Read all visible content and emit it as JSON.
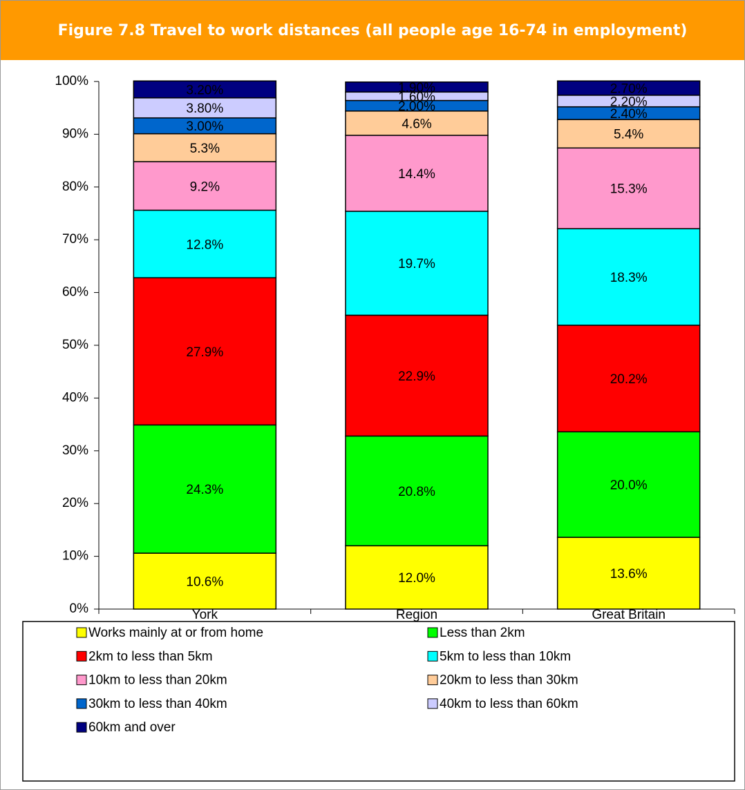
{
  "chart_data": {
    "type": "stacked_bar",
    "title": "Figure 7.8 Travel to work distances (all people age 16-74 in employment)",
    "categories": [
      "York",
      "Region",
      "Great Britain"
    ],
    "ylim": [
      0,
      100
    ],
    "yticks": [
      {
        "value": 0,
        "label": "0%"
      },
      {
        "value": 10,
        "label": "10%"
      },
      {
        "value": 20,
        "label": "20%"
      },
      {
        "value": 30,
        "label": "30%"
      },
      {
        "value": 40,
        "label": "40%"
      },
      {
        "value": 50,
        "label": "50%"
      },
      {
        "value": 60,
        "label": "60%"
      },
      {
        "value": 70,
        "label": "70%"
      },
      {
        "value": 80,
        "label": "80%"
      },
      {
        "value": 90,
        "label": "90%"
      },
      {
        "value": 100,
        "label": "100%"
      }
    ],
    "series": [
      {
        "name": "Works mainly at or from home",
        "color": "#ffff00",
        "values": [
          10.6,
          12.0,
          13.6
        ],
        "value_labels": [
          "10.6%",
          "12.0%",
          "13.6%"
        ]
      },
      {
        "name": "Less than 2km",
        "color": "#00ff00",
        "values": [
          24.3,
          20.8,
          20.0
        ],
        "value_labels": [
          "24.3%",
          "20.8%",
          "20.0%"
        ]
      },
      {
        "name": "2km to less than 5km",
        "color": "#ff0000",
        "values": [
          27.9,
          22.9,
          20.2
        ],
        "value_labels": [
          "27.9%",
          "22.9%",
          "20.2%"
        ]
      },
      {
        "name": "5km to less than 10km",
        "color": "#00ffff",
        "values": [
          12.8,
          19.7,
          18.3
        ],
        "value_labels": [
          "12.8%",
          "19.7%",
          "18.3%"
        ]
      },
      {
        "name": "10km to less than 20km",
        "color": "#ff99cc",
        "values": [
          9.2,
          14.4,
          15.3
        ],
        "value_labels": [
          "9.2%",
          "14.4%",
          "15.3%"
        ]
      },
      {
        "name": "20km to less than 30km",
        "color": "#ffcc99",
        "values": [
          5.3,
          4.6,
          5.4
        ],
        "value_labels": [
          "5.3%",
          "4.6%",
          "5.4%"
        ]
      },
      {
        "name": "30km to less than 40km",
        "color": "#0066cc",
        "values": [
          3.0,
          2.0,
          2.4
        ],
        "value_labels": [
          "3.00%",
          "2.00%",
          "2.40%"
        ]
      },
      {
        "name": "40km to less than 60km",
        "color": "#ccccff",
        "values": [
          3.8,
          1.6,
          2.2
        ],
        "value_labels": [
          "3.80%",
          "1.60%",
          "2.20%"
        ]
      },
      {
        "name": "60km and over",
        "color": "#000080",
        "values": [
          3.2,
          1.9,
          2.7
        ],
        "value_labels": [
          "3.20%",
          "1.90%",
          "2.70%"
        ]
      }
    ]
  }
}
